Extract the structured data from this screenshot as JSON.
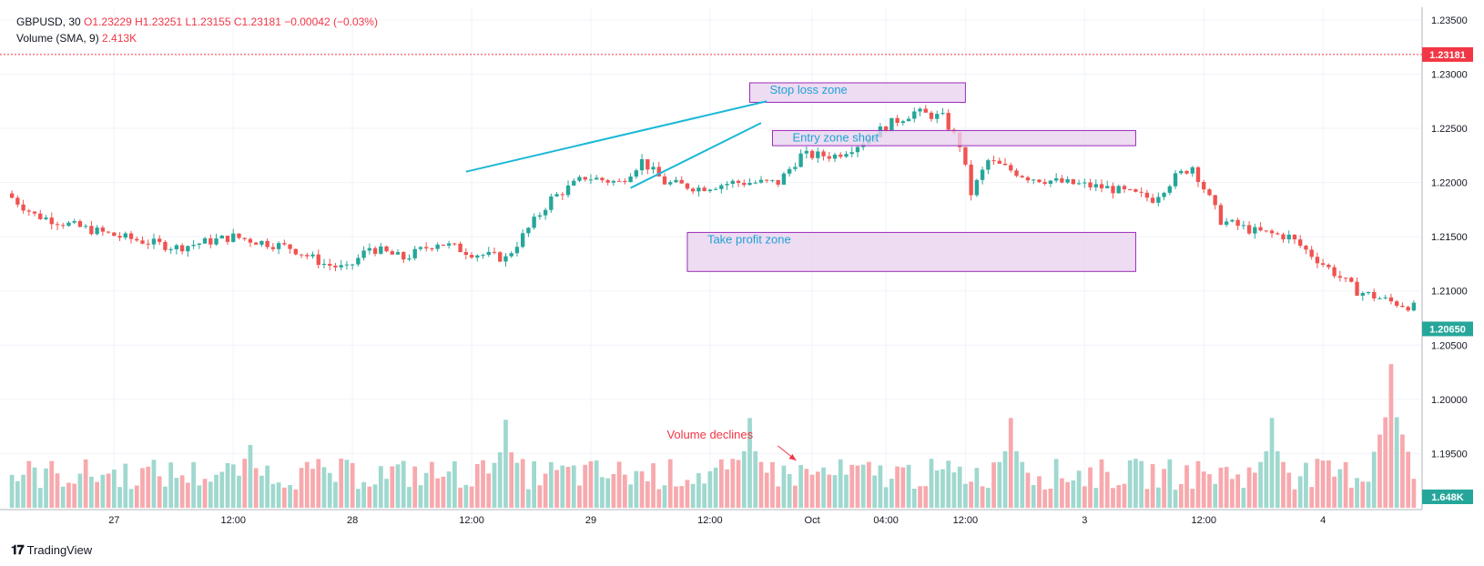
{
  "header": {
    "symbol": "GBPUSD, 30",
    "ohlc": "O1.23229  H1.23251  L1.23155  C1.23181  −0.00042 (−0.03%)",
    "volume_label": "Volume (SMA, 9)",
    "volume_value": "2.413K"
  },
  "footer": {
    "brand": "TradingView"
  },
  "colors": {
    "up": "#26a69a",
    "down": "#ef5350",
    "vol_up": "#9fd8cf",
    "vol_down": "#f7a9ad",
    "trendline": "#1bb8d6",
    "zone_fill": "#ead3f0",
    "zone_border": "#9b2bb7",
    "zone_text": "#1ea2d4",
    "annotation": "#f23645",
    "last_price": "#f23645",
    "current_price": "#26a69a",
    "grid": "#f0f3fa"
  },
  "chart_data": {
    "type": "candlestick",
    "symbol": "GBPUSD",
    "interval": "30",
    "y_axis": {
      "ticks": [
        "1.23500",
        "1.23000",
        "1.22500",
        "1.22000",
        "1.21500",
        "1.21000",
        "1.20500",
        "1.20000",
        "1.19500"
      ],
      "range": [
        1.19,
        1.236
      ]
    },
    "x_axis": {
      "ticks": [
        "27",
        "12:00",
        "28",
        "12:00",
        "29",
        "12:00",
        "Oct",
        "04:00",
        "12:00",
        "3",
        "12:00",
        "4"
      ],
      "range_bars": [
        0,
        248
      ]
    },
    "price_labels": {
      "last": "1.23181",
      "current": "1.20650"
    },
    "volume_label": "1.648K",
    "volume_axis_max": 15000,
    "anchors": [
      [
        0,
        1.219
      ],
      [
        5,
        1.217
      ],
      [
        12,
        1.216
      ],
      [
        20,
        1.215
      ],
      [
        30,
        1.214
      ],
      [
        40,
        1.215
      ],
      [
        50,
        1.214
      ],
      [
        56,
        1.2125
      ],
      [
        60,
        1.212
      ],
      [
        64,
        1.214
      ],
      [
        70,
        1.213
      ],
      [
        76,
        1.2145
      ],
      [
        82,
        1.2135
      ],
      [
        88,
        1.213
      ],
      [
        96,
        1.2185
      ],
      [
        102,
        1.2205
      ],
      [
        108,
        1.22
      ],
      [
        112,
        1.222
      ],
      [
        116,
        1.22
      ],
      [
        122,
        1.2195
      ],
      [
        128,
        1.22
      ],
      [
        136,
        1.22
      ],
      [
        140,
        1.2225
      ],
      [
        146,
        1.2225
      ],
      [
        150,
        1.2235
      ],
      [
        156,
        1.2255
      ],
      [
        160,
        1.2265
      ],
      [
        165,
        1.226
      ],
      [
        168,
        1.2235
      ],
      [
        170,
        1.219
      ],
      [
        173,
        1.222
      ],
      [
        180,
        1.2205
      ],
      [
        186,
        1.22
      ],
      [
        194,
        1.2195
      ],
      [
        202,
        1.2185
      ],
      [
        206,
        1.2205
      ],
      [
        209,
        1.2215
      ],
      [
        214,
        1.2165
      ],
      [
        220,
        1.2155
      ],
      [
        226,
        1.215
      ],
      [
        232,
        1.2125
      ],
      [
        238,
        1.21
      ],
      [
        244,
        1.209
      ],
      [
        248,
        1.2085
      ]
    ],
    "volume_bars": 248,
    "volume_spikes": [
      [
        42,
        7000
      ],
      [
        87,
        9800
      ],
      [
        130,
        10000
      ],
      [
        176,
        10000
      ],
      [
        222,
        10000
      ],
      [
        243,
        16000
      ]
    ],
    "trendlines": [
      {
        "from": [
          80,
          1.221
        ],
        "to": [
          133,
          1.2275
        ]
      },
      {
        "from": [
          109,
          1.2195
        ],
        "to": [
          132,
          1.2255
        ]
      }
    ],
    "zones": [
      {
        "label": "Stop loss zone",
        "x": [
          130,
          168
        ],
        "y": [
          1.2274,
          1.2292
        ]
      },
      {
        "label": "Entry zone short",
        "x": [
          134,
          198
        ],
        "y": [
          1.2234,
          1.2248
        ]
      },
      {
        "label": "Take profit zone",
        "x": [
          119,
          198
        ],
        "y": [
          1.2118,
          1.2154
        ]
      }
    ],
    "annotations": [
      {
        "text": "Volume declines",
        "bar": 117
      }
    ]
  }
}
